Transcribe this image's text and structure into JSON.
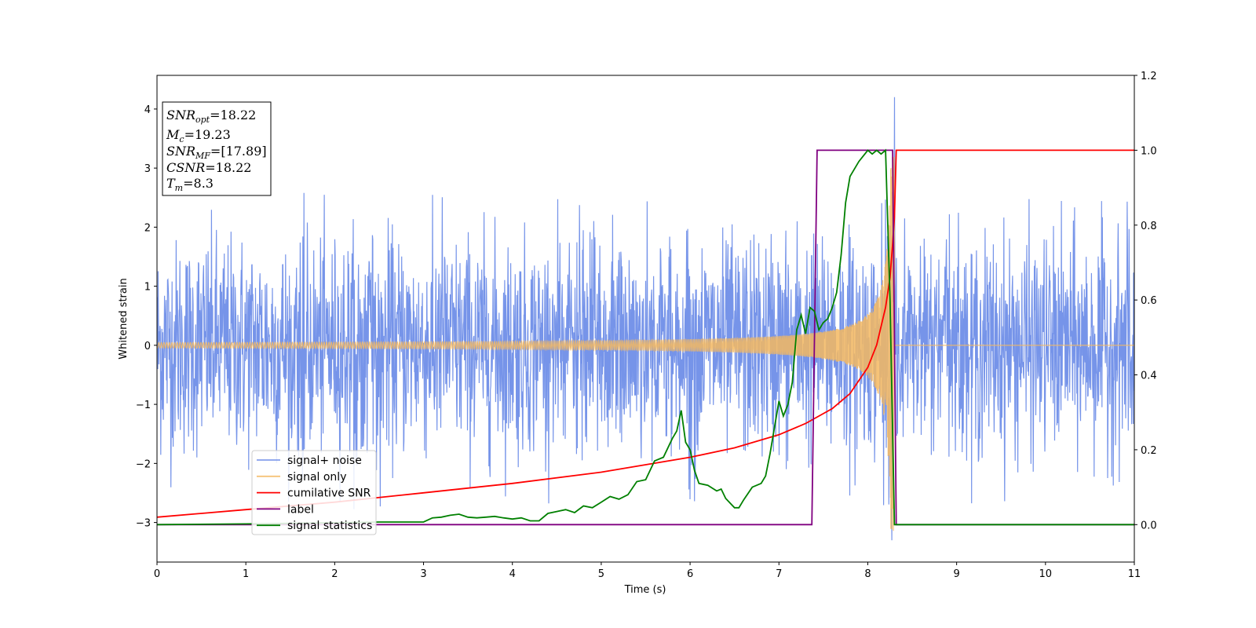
{
  "chart_data": {
    "type": "line",
    "xlabel": "Time (s)",
    "ylabel": "Whitened strain",
    "xlim": [
      0,
      11
    ],
    "ylim_left": [
      -3.67,
      4.57
    ],
    "ylim_right": [
      -0.1,
      1.2
    ],
    "x_ticks": [
      "0",
      "1",
      "2",
      "3",
      "4",
      "5",
      "6",
      "7",
      "8",
      "9",
      "10",
      "11"
    ],
    "y_left_ticks": [
      "4",
      "3",
      "2",
      "1",
      "0",
      "−1",
      "−2",
      "−3"
    ],
    "y_right_ticks": [
      "1.2",
      "1.0",
      "0.8",
      "0.6",
      "0.4",
      "0.2",
      "0.0"
    ],
    "grid": false,
    "legend_position": "lower-left",
    "annotation": [
      {
        "base": "SNR",
        "sub": "opt",
        "value": "=18.22"
      },
      {
        "base": "M",
        "sub": "c",
        "value": "=19.23"
      },
      {
        "base": "SNR",
        "sub": "MF",
        "value": "=[17.89]"
      },
      {
        "base": "CSNR",
        "sub": "",
        "value": "=18.22"
      },
      {
        "base": "T",
        "sub": "m",
        "value": "=8.3"
      }
    ],
    "series": [
      {
        "name": "signal+ noise",
        "axis": "left",
        "color": "#6f8ee8",
        "description_stats": {
          "mean": 0,
          "amplitude_range": [
            -2.8,
            2.6
          ],
          "spike_near_merger": {
            "x": 8.3,
            "max": 4.2,
            "min": -3.3
          }
        }
      },
      {
        "name": "signal only",
        "axis": "left",
        "color": "#f4b860",
        "chirp": {
          "start": 0,
          "merger": 8.3,
          "amp_start": 0.03,
          "amp_merger": 3.2
        }
      },
      {
        "name": "cumilative SNR",
        "axis": "right",
        "color": "#ff0000",
        "x": [
          0,
          1,
          2,
          3,
          4,
          5,
          6,
          6.5,
          7,
          7.3,
          7.6,
          7.8,
          8.0,
          8.1,
          8.2,
          8.25,
          8.28,
          8.3,
          8.32,
          11
        ],
        "y": [
          0.02,
          0.04,
          0.06,
          0.085,
          0.11,
          0.14,
          0.18,
          0.205,
          0.24,
          0.27,
          0.31,
          0.35,
          0.42,
          0.48,
          0.58,
          0.66,
          0.75,
          0.82,
          1.0,
          1.0
        ]
      },
      {
        "name": "label",
        "axis": "right",
        "color": "#800080",
        "x": [
          0,
          7.37,
          7.43,
          8.28,
          8.32,
          11
        ],
        "y": [
          0,
          0,
          1,
          1,
          0,
          0
        ]
      },
      {
        "name": "signal statistics",
        "axis": "right",
        "color": "#008000",
        "x": [
          0,
          1,
          2,
          2.5,
          3,
          3.1,
          3.2,
          3.3,
          3.4,
          3.5,
          3.6,
          3.7,
          3.8,
          3.9,
          4.0,
          4.1,
          4.2,
          4.3,
          4.4,
          4.5,
          4.6,
          4.7,
          4.8,
          4.9,
          5.0,
          5.1,
          5.2,
          5.3,
          5.4,
          5.5,
          5.6,
          5.7,
          5.8,
          5.85,
          5.9,
          5.95,
          6.0,
          6.05,
          6.1,
          6.2,
          6.3,
          6.35,
          6.4,
          6.5,
          6.55,
          6.6,
          6.7,
          6.8,
          6.85,
          6.9,
          6.95,
          7.0,
          7.05,
          7.1,
          7.15,
          7.2,
          7.25,
          7.3,
          7.35,
          7.4,
          7.45,
          7.5,
          7.55,
          7.6,
          7.65,
          7.7,
          7.75,
          7.8,
          7.9,
          8.0,
          8.05,
          8.1,
          8.15,
          8.2,
          8.25,
          8.3,
          8.35,
          9,
          10,
          11
        ],
        "y": [
          0.0,
          0.002,
          0.005,
          0.007,
          0.007,
          0.018,
          0.02,
          0.025,
          0.028,
          0.02,
          0.018,
          0.02,
          0.022,
          0.018,
          0.015,
          0.018,
          0.01,
          0.01,
          0.03,
          0.035,
          0.04,
          0.032,
          0.05,
          0.045,
          0.06,
          0.075,
          0.068,
          0.08,
          0.115,
          0.12,
          0.17,
          0.18,
          0.23,
          0.25,
          0.305,
          0.22,
          0.2,
          0.145,
          0.11,
          0.105,
          0.09,
          0.095,
          0.07,
          0.045,
          0.045,
          0.065,
          0.1,
          0.11,
          0.13,
          0.19,
          0.26,
          0.33,
          0.29,
          0.32,
          0.38,
          0.52,
          0.56,
          0.51,
          0.58,
          0.57,
          0.52,
          0.54,
          0.55,
          0.58,
          0.62,
          0.72,
          0.86,
          0.93,
          0.97,
          1.0,
          0.99,
          1.0,
          0.99,
          1.0,
          0.6,
          0.0,
          0.0,
          0.0,
          0.0,
          0.0
        ]
      }
    ]
  }
}
